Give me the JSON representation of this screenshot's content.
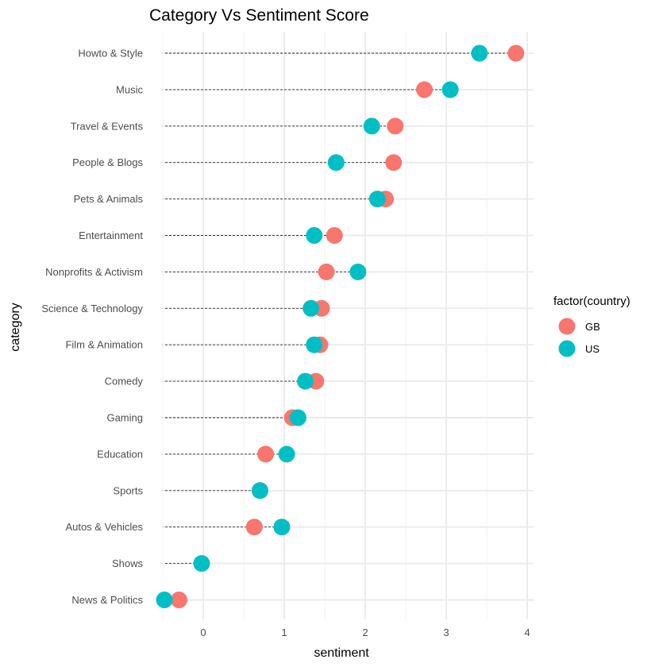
{
  "chart_data": {
    "type": "scatter",
    "title": "Category Vs Sentiment Score",
    "xlabel": "sentiment",
    "ylabel": "category",
    "xlim": [
      -0.5,
      4.05
    ],
    "x_ticks": [
      0,
      1,
      2,
      3,
      4
    ],
    "x_tick_labels": [
      "0",
      "1",
      "2",
      "3",
      "4"
    ],
    "grid": true,
    "legend": {
      "title": "factor(country)",
      "position": "right",
      "entries": [
        {
          "name": "GB",
          "color": "#F8766D"
        },
        {
          "name": "US",
          "color": "#00BFC4"
        }
      ]
    },
    "categories": [
      "Howto & Style",
      "Music",
      "Travel & Events",
      "People & Blogs",
      "Pets & Animals",
      "Entertainment",
      "Nonprofits & Activism",
      "Science & Technology",
      "Film & Animation",
      "Comedy",
      "Gaming",
      "Education",
      "Sports",
      "Autos & Vehicles",
      "Shows",
      "News & Politics"
    ],
    "series": [
      {
        "name": "GB",
        "color": "#F8766D",
        "values": [
          3.86,
          2.73,
          2.37,
          2.35,
          2.25,
          1.62,
          1.52,
          1.46,
          1.44,
          1.39,
          1.1,
          0.77,
          0.7,
          0.63,
          null,
          -0.3
        ]
      },
      {
        "name": "US",
        "color": "#00BFC4",
        "values": [
          3.41,
          3.05,
          2.08,
          1.64,
          2.15,
          1.37,
          1.91,
          1.33,
          1.37,
          1.26,
          1.17,
          1.03,
          0.7,
          0.97,
          -0.02,
          -0.48
        ]
      }
    ]
  }
}
